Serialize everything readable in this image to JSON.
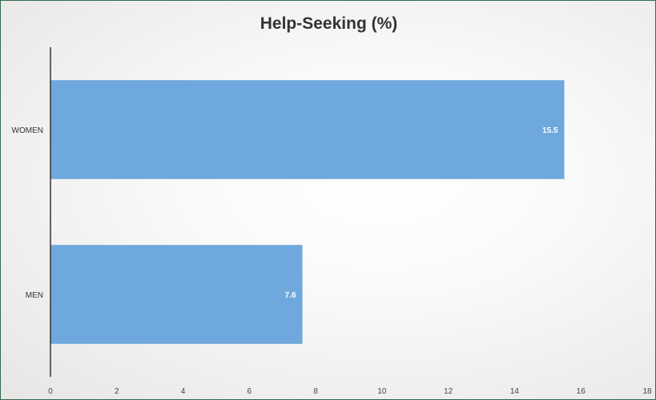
{
  "chart_data": {
    "type": "bar",
    "orientation": "horizontal",
    "title": "Help-Seeking (%)",
    "categories": [
      "WOMEN",
      "MEN"
    ],
    "values": [
      15.5,
      7.6
    ],
    "data_labels": [
      "15.5",
      "7.6"
    ],
    "xlim": [
      0,
      18
    ],
    "x_ticks": [
      "0",
      "2",
      "4",
      "6",
      "8",
      "10",
      "12",
      "14",
      "16",
      "18"
    ],
    "xlabel": "",
    "ylabel": "",
    "grid": false,
    "legend": "none",
    "bar_color": "#6fa8dc"
  }
}
